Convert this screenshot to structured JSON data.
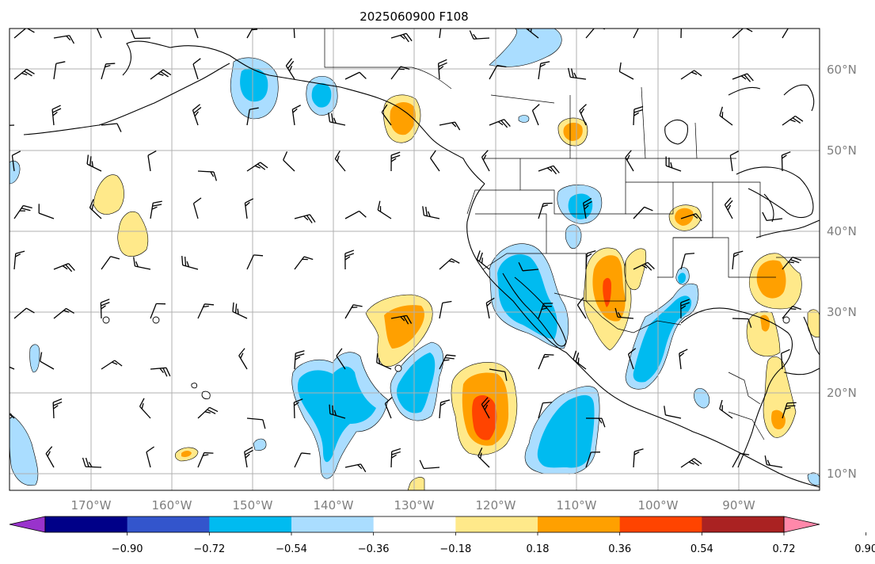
{
  "title": "2025060900 F108",
  "lat_labels": [
    "60°N",
    "50°N",
    "40°N",
    "30°N",
    "20°N",
    "10°N"
  ],
  "lon_labels": [
    "170°W",
    "160°W",
    "150°W",
    "140°W",
    "130°W",
    "120°W",
    "110°W",
    "100°W",
    "90°W"
  ],
  "colorbar": {
    "ticks": [
      "−0.90",
      "−0.72",
      "−0.54",
      "−0.36",
      "−0.18",
      "0.18",
      "0.36",
      "0.54",
      "0.72",
      "0.90"
    ],
    "colors": [
      "#9933cc",
      "#000088",
      "#3355cc",
      "#00bbf0",
      "#aaddff",
      "#ffffff",
      "#ffe98a",
      "#ffa000",
      "#ff4400",
      "#aa2222",
      "#ff88aa"
    ]
  },
  "field_colors": {
    "light_blue": "#aaddff",
    "blue": "#00bbf0",
    "light_yellow": "#ffe98a",
    "orange": "#ffa000",
    "red_orange": "#ff4400"
  }
}
